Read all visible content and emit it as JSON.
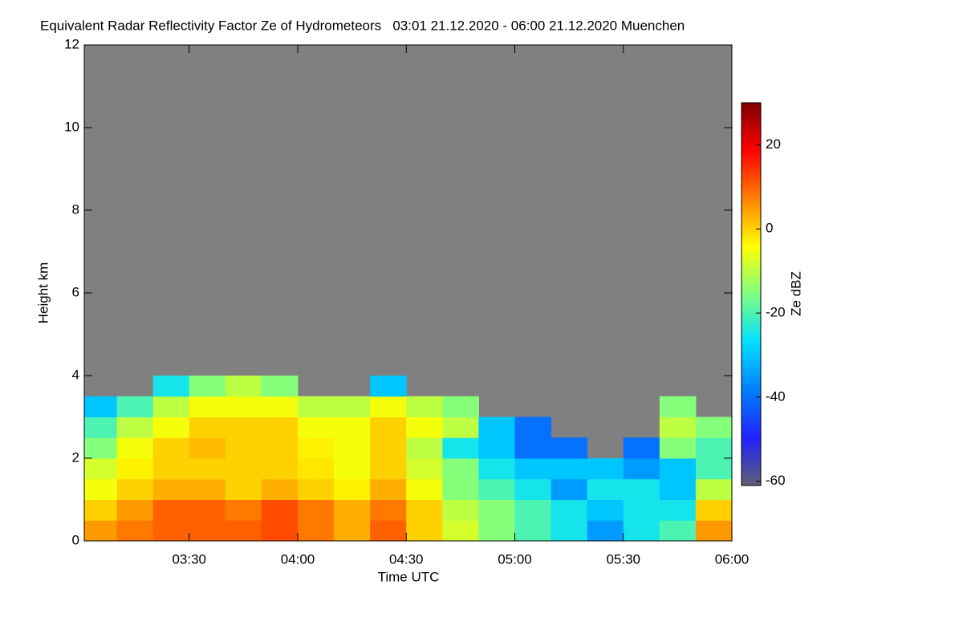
{
  "chart_data": {
    "type": "heatmap",
    "title": "Equivalent Radar Reflectivity Factor Ze of Hydrometeors   03:01 21.12.2020 - 06:00 21.12.2020 Muenchen",
    "x_label": "Time UTC",
    "y_label": "Height km",
    "colorbar_label": "Ze dBZ",
    "xlim": [
      "03:01",
      "06:00"
    ],
    "xticks": [
      "03:30",
      "04:00",
      "04:30",
      "05:00",
      "05:30",
      "06:00"
    ],
    "ylim": [
      0,
      12
    ],
    "yticks": [
      0,
      2,
      4,
      6,
      8,
      10,
      12
    ],
    "zlim": [
      -61,
      30
    ],
    "zticks": [
      -60,
      -40,
      -20,
      0,
      20
    ],
    "background": "#808080",
    "colors": [
      "#5f5f73",
      "#2020ff",
      "#0080ff",
      "#00e0ff",
      "#80ff80",
      "#ffff00",
      "#ff8000",
      "#ff0000",
      "#800000"
    ],
    "x_bins": [
      "03:01",
      "03:10",
      "03:20",
      "03:30",
      "03:40",
      "03:50",
      "04:00",
      "04:10",
      "04:20",
      "04:30",
      "04:40",
      "04:50",
      "05:00",
      "05:10",
      "05:20",
      "05:30",
      "05:40",
      "05:50",
      "06:00"
    ],
    "y_bins": [
      0,
      0.5,
      1,
      1.5,
      2,
      2.5,
      3,
      3.5,
      4
    ],
    "z": [
      [
        5,
        8,
        10,
        10,
        10,
        12,
        8,
        3,
        10,
        0,
        -8,
        -15,
        -20,
        -25,
        -35,
        -25,
        -20,
        5
      ],
      [
        0,
        5,
        10,
        10,
        8,
        12,
        8,
        3,
        8,
        0,
        -10,
        -15,
        -20,
        -25,
        -30,
        -25,
        -25,
        0
      ],
      [
        -5,
        0,
        3,
        3,
        0,
        3,
        0,
        -3,
        3,
        -5,
        -15,
        -20,
        -25,
        -35,
        -25,
        -25,
        -30,
        -10
      ],
      [
        -8,
        -3,
        0,
        0,
        0,
        0,
        -2,
        -5,
        0,
        -8,
        -15,
        -25,
        -30,
        -30,
        -30,
        -35,
        -30,
        -20
      ],
      [
        -15,
        -5,
        0,
        2,
        0,
        0,
        -3,
        -5,
        0,
        -10,
        -25,
        -30,
        -40,
        -40,
        null,
        -40,
        -15,
        -20
      ],
      [
        -20,
        -10,
        -5,
        0,
        0,
        0,
        -5,
        -5,
        0,
        -5,
        -10,
        -30,
        -40,
        null,
        null,
        null,
        -10,
        -15
      ],
      [
        -30,
        -20,
        -10,
        -5,
        -5,
        -5,
        -10,
        -10,
        -5,
        -10,
        -15,
        null,
        null,
        null,
        null,
        null,
        -15,
        null
      ],
      [
        null,
        null,
        -25,
        -15,
        -10,
        -15,
        null,
        null,
        -30,
        null,
        null,
        null,
        null,
        null,
        null,
        null,
        null,
        null
      ]
    ]
  }
}
